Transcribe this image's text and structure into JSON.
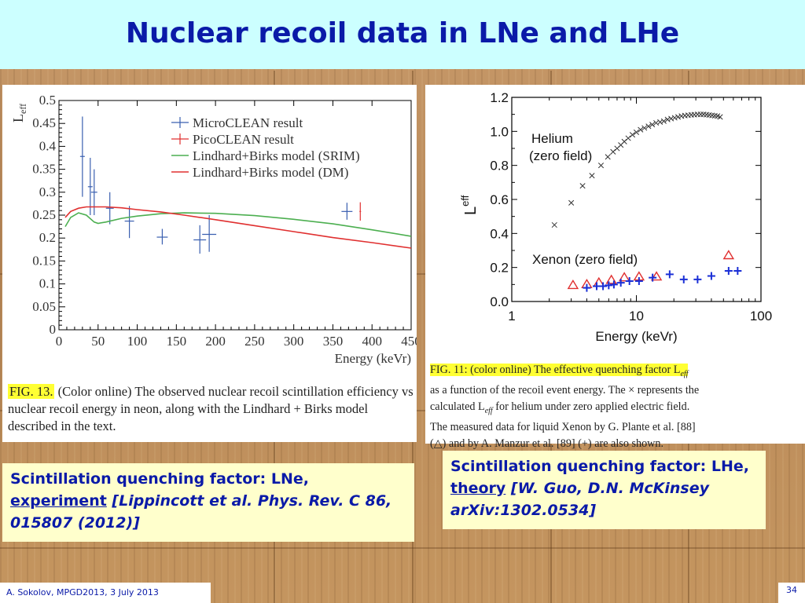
{
  "title": "Nuclear recoil data in LNe and LHe",
  "footer": "A. Sokolov, MPGD2013, 3 July 2013",
  "page_number": "34",
  "colors": {
    "title_text": "#0a1aa8",
    "title_bg": "#ccffff",
    "note_bg": "#ffffcc",
    "highlight": "#ffff33"
  },
  "left_figure": {
    "caption_label": "FIG. 13.",
    "caption_text": " (Color online) The observed nuclear recoil scintillation efficiency vs nuclear recoil energy in neon, along with the Lindhard + Birks model described in the text."
  },
  "right_figure": {
    "caption_label": "FIG. 11:",
    "caption_hl_text": " (color online) The effective quenching factor L",
    "caption_hl_sub": "eff",
    "caption_line1_rest": "as a function of the recoil event energy. The × represents the",
    "caption_line2": "calculated L",
    "caption_line2_sub": "eff",
    "caption_line2_rest": " for helium under zero applied electric field.",
    "caption_line3": "The measured data for liquid Xenon by G. Plante et al. [88]",
    "caption_line4": "(△) and by A. Manzur et al. [89] (+) are also shown."
  },
  "note_left": {
    "line1": "Scintillation quenching factor: LNe,",
    "underlined": "experiment",
    "rest": " [Lippincott et al. Phys. Rev. C 86, 015807 (2012)]"
  },
  "note_right": {
    "line1": "Scintillation quenching factor: LHe, ",
    "underlined": "theory",
    "rest": " [W. Guo, D.N. McKinsey arXiv:1302.0534]"
  },
  "chart_data": [
    {
      "type": "scatter",
      "ylabel": "L",
      "ylabel_sub": "eff",
      "xlabel": "Energy (keVr)",
      "xlim": [
        0,
        450
      ],
      "ylim": [
        0,
        0.5
      ],
      "xticks": [
        0,
        50,
        100,
        150,
        200,
        250,
        300,
        350,
        400,
        450
      ],
      "yticks": [
        0,
        0.05,
        0.1,
        0.15,
        0.2,
        0.25,
        0.3,
        0.35,
        0.4,
        0.45,
        0.5
      ],
      "legend": [
        "MicroCLEAN result",
        "PicoCLEAN result",
        "Lindhard+Birks model (SRIM)",
        "Lindhard+Birks model (DM)"
      ],
      "legend_position": "top-right",
      "series": [
        {
          "name": "MicroCLEAN result",
          "color": "#3a5fb0",
          "points": [
            {
              "x": 30,
              "y": 0.378,
              "ylo": 0.29,
              "yhi": 0.465,
              "xerr": 3
            },
            {
              "x": 40,
              "y": 0.312,
              "ylo": 0.25,
              "yhi": 0.375,
              "xerr": 3
            },
            {
              "x": 45,
              "y": 0.3,
              "ylo": 0.25,
              "yhi": 0.35,
              "xerr": 4
            },
            {
              "x": 65,
              "y": 0.265,
              "ylo": 0.23,
              "yhi": 0.3,
              "xerr": 5
            },
            {
              "x": 90,
              "y": 0.237,
              "ylo": 0.2,
              "yhi": 0.27,
              "xerr": 6
            },
            {
              "x": 132,
              "y": 0.202,
              "ylo": 0.186,
              "yhi": 0.22,
              "xerr": 7
            },
            {
              "x": 180,
              "y": 0.196,
              "ylo": 0.166,
              "yhi": 0.228,
              "xerr": 8
            },
            {
              "x": 192,
              "y": 0.208,
              "ylo": 0.17,
              "yhi": 0.25,
              "xerr": 9
            },
            {
              "x": 368,
              "y": 0.258,
              "ylo": 0.24,
              "yhi": 0.277,
              "xerr": 7
            }
          ]
        },
        {
          "name": "PicoCLEAN result",
          "color": "#e03030",
          "points": [
            {
              "x": 385,
              "y": 0.258,
              "ylo": 0.238,
              "yhi": 0.278,
              "xerr": 1
            }
          ]
        },
        {
          "name": "Lindhard+Birks model (SRIM)",
          "color": "#4caf50",
          "line": true,
          "x": [
            8,
            15,
            25,
            35,
            45,
            50,
            60,
            80,
            100,
            130,
            160,
            200,
            250,
            300,
            350,
            400,
            450
          ],
          "y": [
            0.225,
            0.245,
            0.255,
            0.25,
            0.235,
            0.232,
            0.235,
            0.243,
            0.248,
            0.253,
            0.255,
            0.254,
            0.249,
            0.241,
            0.231,
            0.218,
            0.204
          ]
        },
        {
          "name": "Lindhard+Birks model (DM)",
          "color": "#e03030",
          "line": true,
          "x": [
            8,
            15,
            25,
            35,
            45,
            60,
            80,
            100,
            130,
            160,
            200,
            250,
            300,
            350,
            400,
            450
          ],
          "y": [
            0.245,
            0.258,
            0.265,
            0.268,
            0.268,
            0.268,
            0.266,
            0.262,
            0.257,
            0.25,
            0.24,
            0.227,
            0.214,
            0.201,
            0.19,
            0.178
          ]
        }
      ]
    },
    {
      "type": "scatter",
      "ylabel": "L",
      "ylabel_sub": "eff",
      "xlabel": "Energy (keVr)",
      "xscale": "log",
      "xlim": [
        1,
        100
      ],
      "ylim": [
        0,
        1.2
      ],
      "xticks": [
        1,
        10,
        100
      ],
      "xtick_labels": [
        "1",
        "10",
        "100"
      ],
      "yticks": [
        0,
        0.2,
        0.4,
        0.6,
        0.8,
        1.0,
        1.2
      ],
      "ytick_labels": [
        "0.0",
        "0.2",
        "0.4",
        "0.6",
        "0.8",
        "1.0",
        "1.2"
      ],
      "annotations": [
        "Helium",
        "(zero field)",
        "Xenon (zero field)"
      ],
      "series": [
        {
          "marker": "x",
          "color": "#333333",
          "x": [
            2.2,
            3.0,
            3.7,
            4.4,
            5.2,
            5.9,
            6.5,
            7.0,
            7.5,
            8.0,
            8.6,
            9.3,
            10.0,
            10.8,
            11.6,
            12.5,
            13.4,
            14.4,
            15.5,
            16.6,
            17.8,
            19.0,
            20.3,
            21.6,
            23.0,
            24.5,
            26.0,
            27.6,
            29.2,
            31.0,
            32.8,
            34.6,
            36.5,
            38.4,
            40.5,
            42.6,
            44.8,
            47.0
          ],
          "y": [
            0.45,
            0.58,
            0.68,
            0.74,
            0.8,
            0.85,
            0.88,
            0.9,
            0.92,
            0.94,
            0.96,
            0.98,
            0.995,
            1.01,
            1.02,
            1.03,
            1.04,
            1.05,
            1.055,
            1.06,
            1.07,
            1.075,
            1.08,
            1.085,
            1.09,
            1.093,
            1.095,
            1.097,
            1.098,
            1.1,
            1.1,
            1.1,
            1.098,
            1.096,
            1.094,
            1.092,
            1.09,
            1.085
          ]
        },
        {
          "marker": "triangle",
          "color": "#e03030",
          "x": [
            3.1,
            4.0,
            5.0,
            6.3,
            8.0,
            10.5,
            14.5,
            55
          ],
          "y": [
            0.095,
            0.1,
            0.11,
            0.125,
            0.14,
            0.145,
            0.145,
            0.27
          ]
        },
        {
          "marker": "plus",
          "color": "#1a2fd6",
          "x": [
            4.0,
            4.8,
            5.4,
            6.0,
            6.6,
            7.5,
            8.8,
            10.5,
            13.5,
            18.5,
            24,
            31,
            40,
            55,
            65
          ],
          "y": [
            0.08,
            0.09,
            0.09,
            0.095,
            0.1,
            0.11,
            0.12,
            0.12,
            0.14,
            0.16,
            0.13,
            0.13,
            0.15,
            0.18,
            0.18
          ]
        }
      ]
    }
  ]
}
